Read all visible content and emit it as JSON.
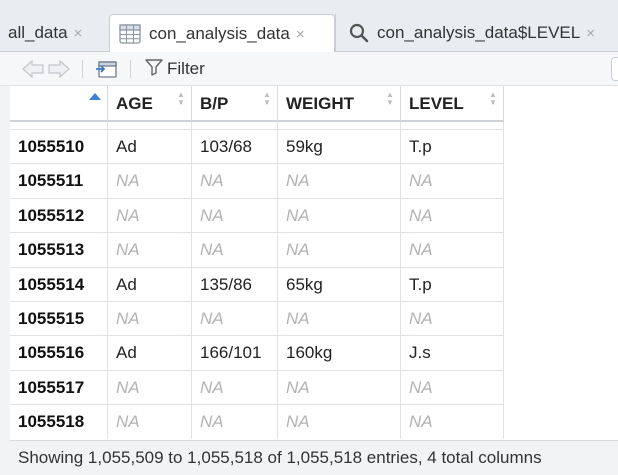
{
  "tabs": [
    {
      "label": "all_data",
      "close": "×",
      "icon": "none"
    },
    {
      "label": "con_analysis_data",
      "close": "×",
      "icon": "table-grid-icon",
      "active": true
    },
    {
      "label": "con_analysis_data$LEVEL",
      "close": "×",
      "icon": "search-icon"
    }
  ],
  "toolbar": {
    "back_icon": "back-arrow-icon",
    "forward_icon": "forward-arrow-icon",
    "popout_icon": "popout-window-icon",
    "filter_icon": "funnel-icon",
    "filter_label": "Filter"
  },
  "table": {
    "columns": [
      "",
      "AGE",
      "B/P",
      "WEIGHT",
      "LEVEL"
    ],
    "sorted_column": 0,
    "sort_direction": "ascending",
    "rows": [
      [
        "1055510",
        "Ad",
        "103/68",
        "59kg",
        "T.p"
      ],
      [
        "1055511",
        "NA",
        "NA",
        "NA",
        "NA"
      ],
      [
        "1055512",
        "NA",
        "NA",
        "NA",
        "NA"
      ],
      [
        "1055513",
        "NA",
        "NA",
        "NA",
        "NA"
      ],
      [
        "1055514",
        "Ad",
        "135/86",
        "65kg",
        "T.p"
      ],
      [
        "1055515",
        "NA",
        "NA",
        "NA",
        "NA"
      ],
      [
        "1055516",
        "Ad",
        "166/101",
        "160kg",
        "J.s"
      ],
      [
        "1055517",
        "NA",
        "NA",
        "NA",
        "NA"
      ],
      [
        "1055518",
        "NA",
        "NA",
        "NA",
        "NA"
      ]
    ]
  },
  "footer": {
    "status": "Showing 1,055,509 to 1,055,518 of 1,055,518 entries, 4 total columns"
  },
  "colors": {
    "tabbar_bg": "#e9edf2",
    "sort_active": "#3f7fd6",
    "na_text": "#b3b3b3"
  }
}
